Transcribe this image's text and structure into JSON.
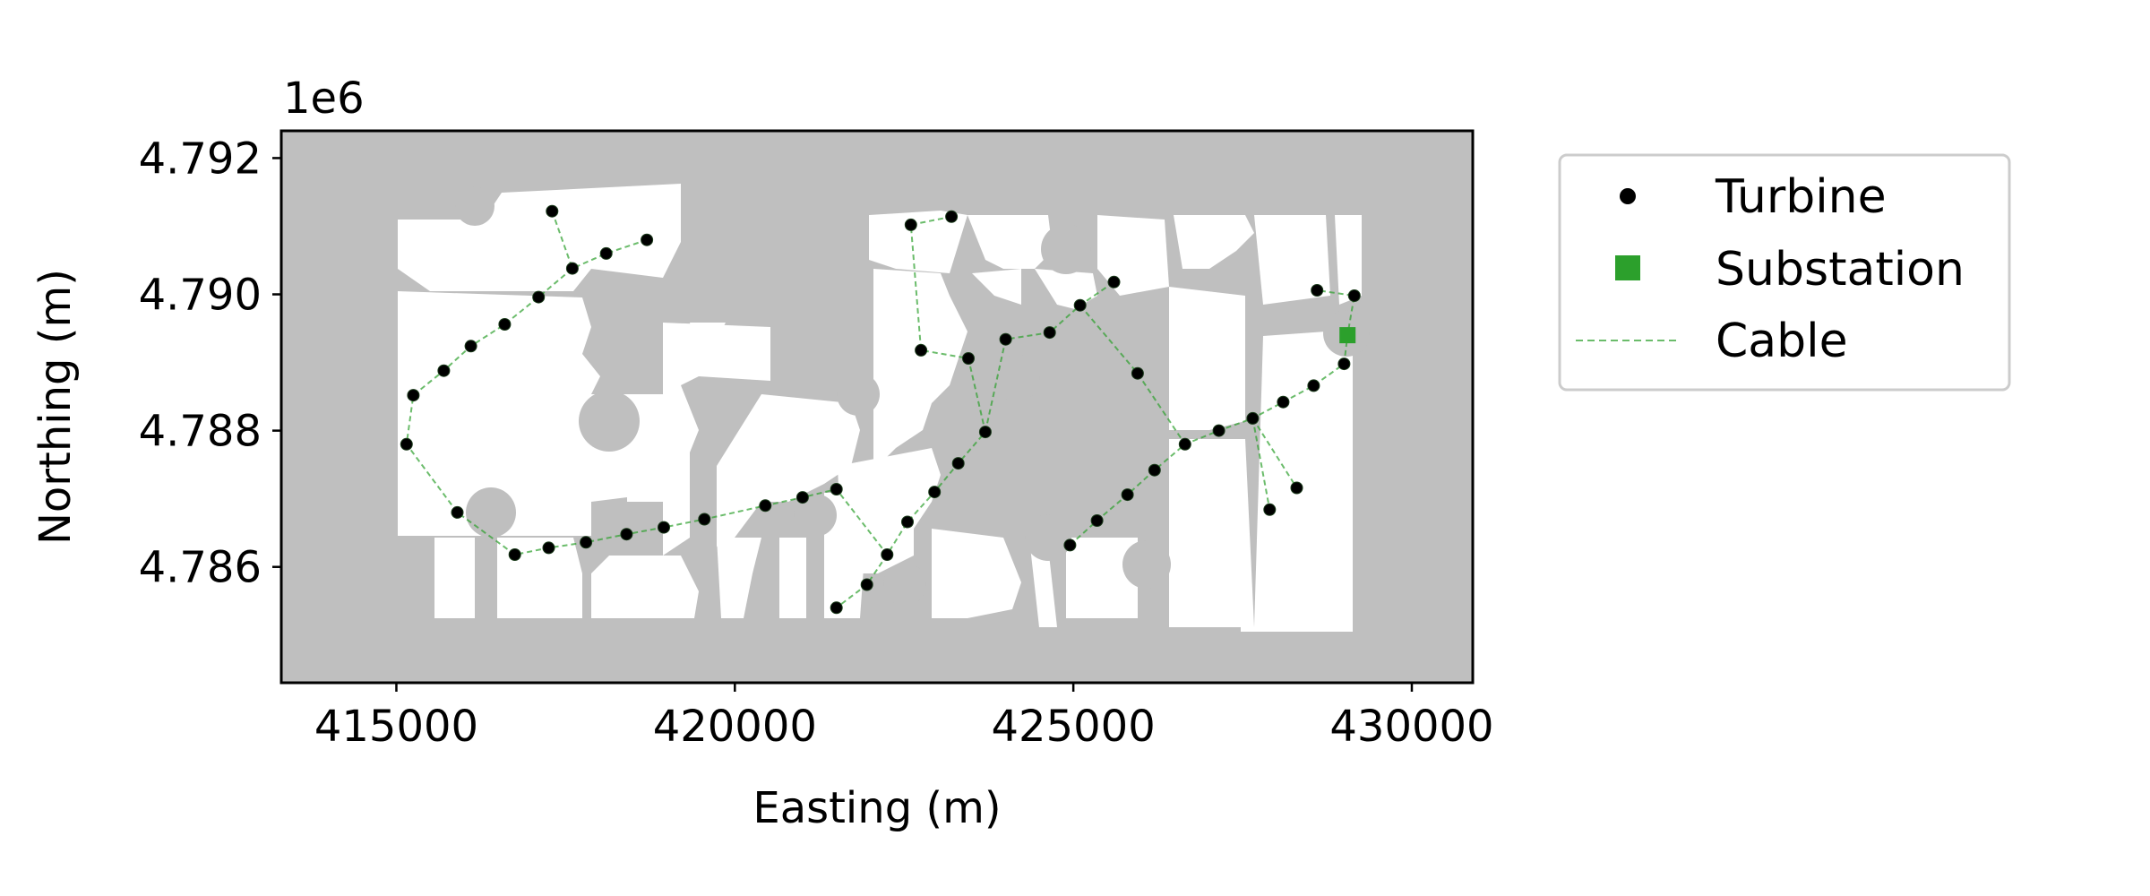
{
  "chart_data": {
    "type": "scatter",
    "title": "",
    "xlabel": "Easting (m)",
    "ylabel": "Northing (m)",
    "y_offset_label": "1e6",
    "xlim": [
      413300,
      430900
    ],
    "ylim": [
      4.7843,
      4.7924
    ],
    "x_ticks": [
      415000,
      420000,
      425000,
      430000
    ],
    "x_tick_labels": [
      "415000",
      "420000",
      "425000",
      "430000"
    ],
    "y_ticks": [
      4.786,
      4.788,
      4.79,
      4.792
    ],
    "y_tick_labels": [
      "4.786",
      "4.788",
      "4.790",
      "4.792"
    ],
    "grid": false,
    "legend_position": "outside-right-top",
    "colors": {
      "background": "#bfbfbf",
      "land": "#ffffff",
      "turbine": "#000000",
      "substation": "#2ca02c",
      "cable": "#2ca02c"
    },
    "series": [
      {
        "name": "Turbine",
        "marker": "circle",
        "points": [
          [
            417300,
            4.79122
          ],
          [
            418700,
            4.7908
          ],
          [
            418100,
            4.7906
          ],
          [
            417600,
            4.79038
          ],
          [
            417100,
            4.78996
          ],
          [
            416600,
            4.78956
          ],
          [
            416100,
            4.78924
          ],
          [
            415700,
            4.78888
          ],
          [
            415250,
            4.78852
          ],
          [
            415150,
            4.7878
          ],
          [
            415900,
            4.7868
          ],
          [
            416750,
            4.78618
          ],
          [
            417250,
            4.78628
          ],
          [
            417800,
            4.78636
          ],
          [
            418400,
            4.78648
          ],
          [
            418950,
            4.78658
          ],
          [
            419550,
            4.7867
          ],
          [
            420450,
            4.7869
          ],
          [
            421000,
            4.78702
          ],
          [
            421500,
            4.78714
          ],
          [
            422250,
            4.78618
          ],
          [
            421950,
            4.78574
          ],
          [
            421500,
            4.7854
          ],
          [
            422550,
            4.78666
          ],
          [
            422950,
            4.7871
          ],
          [
            423300,
            4.78752
          ],
          [
            423700,
            4.78798
          ],
          [
            423450,
            4.78906
          ],
          [
            422750,
            4.78918
          ],
          [
            424000,
            4.78934
          ],
          [
            424650,
            4.78944
          ],
          [
            425100,
            4.78984
          ],
          [
            425600,
            4.79018
          ],
          [
            422600,
            4.79102
          ],
          [
            423200,
            4.79114
          ],
          [
            425950,
            4.78884
          ],
          [
            424950,
            4.78632
          ],
          [
            425350,
            4.78668
          ],
          [
            425800,
            4.78706
          ],
          [
            426200,
            4.78742
          ],
          [
            426650,
            4.7878
          ],
          [
            427150,
            4.788
          ],
          [
            427650,
            4.78818
          ],
          [
            428100,
            4.78842
          ],
          [
            428550,
            4.78866
          ],
          [
            429000,
            4.78898
          ],
          [
            429150,
            4.78998
          ],
          [
            428600,
            4.79006
          ],
          [
            428300,
            4.78716
          ],
          [
            427900,
            4.78684
          ]
        ]
      },
      {
        "name": "Substation",
        "marker": "square",
        "points": [
          [
            429050,
            4.7894
          ]
        ]
      },
      {
        "name": "Cable",
        "style": "dashed",
        "segments": [
          [
            [
              418700,
              4.7908
            ],
            [
              418100,
              4.7906
            ],
            [
              417600,
              4.79038
            ],
            [
              417100,
              4.78996
            ],
            [
              416600,
              4.78956
            ],
            [
              416100,
              4.78924
            ],
            [
              415700,
              4.78888
            ],
            [
              415250,
              4.78852
            ],
            [
              415150,
              4.7878
            ],
            [
              415900,
              4.7868
            ],
            [
              416750,
              4.78618
            ],
            [
              417250,
              4.78628
            ],
            [
              417800,
              4.78636
            ],
            [
              418400,
              4.78648
            ],
            [
              418950,
              4.78658
            ],
            [
              419550,
              4.7867
            ],
            [
              420450,
              4.7869
            ],
            [
              421000,
              4.78702
            ],
            [
              421500,
              4.78714
            ],
            [
              422250,
              4.78618
            ],
            [
              422550,
              4.78666
            ],
            [
              422950,
              4.7871
            ],
            [
              423300,
              4.78752
            ],
            [
              423700,
              4.78798
            ],
            [
              423450,
              4.78906
            ],
            [
              422750,
              4.78918
            ],
            [
              422600,
              4.79102
            ],
            [
              423200,
              4.79114
            ]
          ],
          [
            [
              417300,
              4.79122
            ],
            [
              417600,
              4.79038
            ]
          ],
          [
            [
              422250,
              4.78618
            ],
            [
              421950,
              4.78574
            ],
            [
              421500,
              4.7854
            ]
          ],
          [
            [
              423700,
              4.78798
            ],
            [
              424000,
              4.78934
            ],
            [
              424650,
              4.78944
            ],
            [
              425100,
              4.78984
            ],
            [
              425600,
              4.79018
            ]
          ],
          [
            [
              425100,
              4.78984
            ],
            [
              425950,
              4.78884
            ],
            [
              426650,
              4.7878
            ]
          ],
          [
            [
              424950,
              4.78632
            ],
            [
              425350,
              4.78668
            ],
            [
              425800,
              4.78706
            ],
            [
              426200,
              4.78742
            ],
            [
              426650,
              4.7878
            ],
            [
              427150,
              4.788
            ],
            [
              427650,
              4.78818
            ],
            [
              428100,
              4.78842
            ],
            [
              428550,
              4.78866
            ],
            [
              429000,
              4.78898
            ],
            [
              429050,
              4.7894
            ],
            [
              429150,
              4.78998
            ],
            [
              428600,
              4.79006
            ]
          ],
          [
            [
              427650,
              4.78818
            ],
            [
              427900,
              4.78684
            ]
          ],
          [
            [
              427650,
              4.78818
            ],
            [
              428300,
              4.78716
            ]
          ]
        ]
      }
    ]
  },
  "legend": {
    "items": [
      "Turbine",
      "Substation",
      "Cable"
    ]
  }
}
